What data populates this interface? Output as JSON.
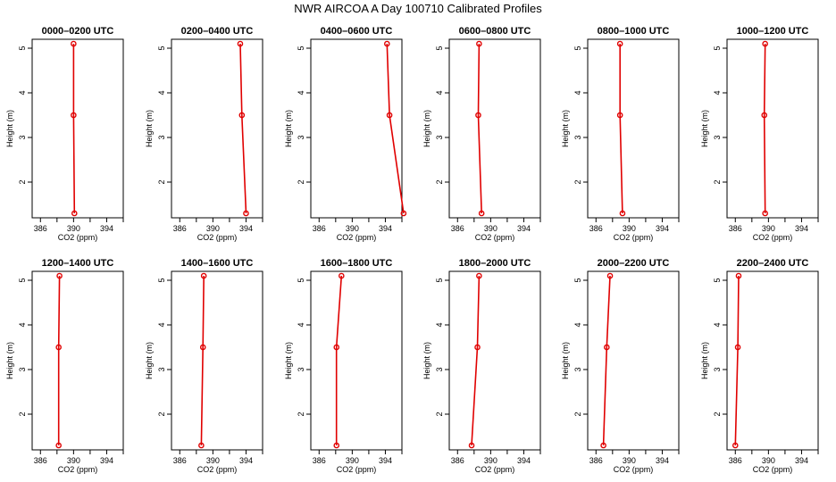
{
  "title": "NWR AIRCOA A  Day 100710  Calibrated Profiles",
  "colors": {
    "line": "#e00000",
    "marker": "#e00000",
    "axis": "#000000"
  },
  "chart_data": [
    {
      "type": "line",
      "title": "0000–0200 UTC",
      "xlabel": "CO2 (ppm)",
      "ylabel": "Height (m)",
      "xlim": [
        385,
        396
      ],
      "ylim": [
        1.2,
        5.2
      ],
      "xticks": [
        "386",
        "390",
        "394"
      ],
      "yticks": [
        "2",
        "3",
        "4",
        "5"
      ],
      "points": [
        {
          "x": 390.0,
          "y": 5.1
        },
        {
          "x": 390.0,
          "y": 3.5
        },
        {
          "x": 390.1,
          "y": 1.3
        }
      ]
    },
    {
      "type": "line",
      "title": "0200–0400 UTC",
      "xlabel": "CO2 (ppm)",
      "ylabel": "Height (m)",
      "xlim": [
        385,
        396
      ],
      "ylim": [
        1.2,
        5.2
      ],
      "xticks": [
        "386",
        "390",
        "394"
      ],
      "yticks": [
        "2",
        "3",
        "4",
        "5"
      ],
      "points": [
        {
          "x": 393.3,
          "y": 5.1
        },
        {
          "x": 393.5,
          "y": 3.5
        },
        {
          "x": 394.0,
          "y": 1.3
        }
      ]
    },
    {
      "type": "line",
      "title": "0400–0600 UTC",
      "xlabel": "CO2 (ppm)",
      "ylabel": "Height (m)",
      "xlim": [
        385,
        396
      ],
      "ylim": [
        1.2,
        5.2
      ],
      "xticks": [
        "386",
        "390",
        "394"
      ],
      "yticks": [
        "2",
        "3",
        "4",
        "5"
      ],
      "points": [
        {
          "x": 394.2,
          "y": 5.1
        },
        {
          "x": 394.5,
          "y": 3.5
        },
        {
          "x": 396.2,
          "y": 1.3
        }
      ]
    },
    {
      "type": "line",
      "title": "0600–0800 UTC",
      "xlabel": "CO2 (ppm)",
      "ylabel": "Height (m)",
      "xlim": [
        385,
        396
      ],
      "ylim": [
        1.2,
        5.2
      ],
      "xticks": [
        "386",
        "390",
        "394"
      ],
      "yticks": [
        "2",
        "3",
        "4",
        "5"
      ],
      "points": [
        {
          "x": 388.6,
          "y": 5.1
        },
        {
          "x": 388.5,
          "y": 3.5
        },
        {
          "x": 388.9,
          "y": 1.3
        }
      ]
    },
    {
      "type": "line",
      "title": "0800–1000 UTC",
      "xlabel": "CO2 (ppm)",
      "ylabel": "Height (m)",
      "xlim": [
        385,
        396
      ],
      "ylim": [
        1.2,
        5.2
      ],
      "xticks": [
        "386",
        "390",
        "394"
      ],
      "yticks": [
        "2",
        "3",
        "4",
        "5"
      ],
      "points": [
        {
          "x": 388.9,
          "y": 5.1
        },
        {
          "x": 388.9,
          "y": 3.5
        },
        {
          "x": 389.2,
          "y": 1.3
        }
      ]
    },
    {
      "type": "line",
      "title": "1000–1200 UTC",
      "xlabel": "CO2 (ppm)",
      "ylabel": "Height (m)",
      "xlim": [
        385,
        396
      ],
      "ylim": [
        1.2,
        5.2
      ],
      "xticks": [
        "386",
        "390",
        "394"
      ],
      "yticks": [
        "2",
        "3",
        "4",
        "5"
      ],
      "points": [
        {
          "x": 389.6,
          "y": 5.1
        },
        {
          "x": 389.5,
          "y": 3.5
        },
        {
          "x": 389.6,
          "y": 1.3
        }
      ]
    },
    {
      "type": "line",
      "title": "1200–1400 UTC",
      "xlabel": "CO2 (ppm)",
      "ylabel": "Height (m)",
      "xlim": [
        385,
        396
      ],
      "ylim": [
        1.2,
        5.2
      ],
      "xticks": [
        "386",
        "390",
        "394"
      ],
      "yticks": [
        "2",
        "3",
        "4",
        "5"
      ],
      "points": [
        {
          "x": 388.3,
          "y": 5.1
        },
        {
          "x": 388.2,
          "y": 3.5
        },
        {
          "x": 388.2,
          "y": 1.3
        }
      ]
    },
    {
      "type": "line",
      "title": "1400–1600 UTC",
      "xlabel": "CO2 (ppm)",
      "ylabel": "Height (m)",
      "xlim": [
        385,
        396
      ],
      "ylim": [
        1.2,
        5.2
      ],
      "xticks": [
        "386",
        "390",
        "394"
      ],
      "yticks": [
        "2",
        "3",
        "4",
        "5"
      ],
      "points": [
        {
          "x": 388.9,
          "y": 5.1
        },
        {
          "x": 388.8,
          "y": 3.5
        },
        {
          "x": 388.6,
          "y": 1.3
        }
      ]
    },
    {
      "type": "line",
      "title": "1600–1800 UTC",
      "xlabel": "CO2 (ppm)",
      "ylabel": "Height (m)",
      "xlim": [
        385,
        396
      ],
      "ylim": [
        1.2,
        5.2
      ],
      "xticks": [
        "386",
        "390",
        "394"
      ],
      "yticks": [
        "2",
        "3",
        "4",
        "5"
      ],
      "points": [
        {
          "x": 388.7,
          "y": 5.1
        },
        {
          "x": 388.1,
          "y": 3.5
        },
        {
          "x": 388.1,
          "y": 1.3
        }
      ]
    },
    {
      "type": "line",
      "title": "1800–2000 UTC",
      "xlabel": "CO2 (ppm)",
      "ylabel": "Height (m)",
      "xlim": [
        385,
        396
      ],
      "ylim": [
        1.2,
        5.2
      ],
      "xticks": [
        "386",
        "390",
        "394"
      ],
      "yticks": [
        "2",
        "3",
        "4",
        "5"
      ],
      "points": [
        {
          "x": 388.6,
          "y": 5.1
        },
        {
          "x": 388.4,
          "y": 3.5
        },
        {
          "x": 387.7,
          "y": 1.3
        }
      ]
    },
    {
      "type": "line",
      "title": "2000–2200 UTC",
      "xlabel": "CO2 (ppm)",
      "ylabel": "Height (m)",
      "xlim": [
        385,
        396
      ],
      "ylim": [
        1.2,
        5.2
      ],
      "xticks": [
        "386",
        "390",
        "394"
      ],
      "yticks": [
        "2",
        "3",
        "4",
        "5"
      ],
      "points": [
        {
          "x": 387.7,
          "y": 5.1
        },
        {
          "x": 387.3,
          "y": 3.5
        },
        {
          "x": 386.9,
          "y": 1.3
        }
      ]
    },
    {
      "type": "line",
      "title": "2200–2400 UTC",
      "xlabel": "CO2 (ppm)",
      "ylabel": "Height (m)",
      "xlim": [
        385,
        396
      ],
      "ylim": [
        1.2,
        5.2
      ],
      "xticks": [
        "386",
        "390",
        "394"
      ],
      "yticks": [
        "2",
        "3",
        "4",
        "5"
      ],
      "points": [
        {
          "x": 386.4,
          "y": 5.1
        },
        {
          "x": 386.3,
          "y": 3.5
        },
        {
          "x": 386.0,
          "y": 1.3
        }
      ]
    }
  ]
}
